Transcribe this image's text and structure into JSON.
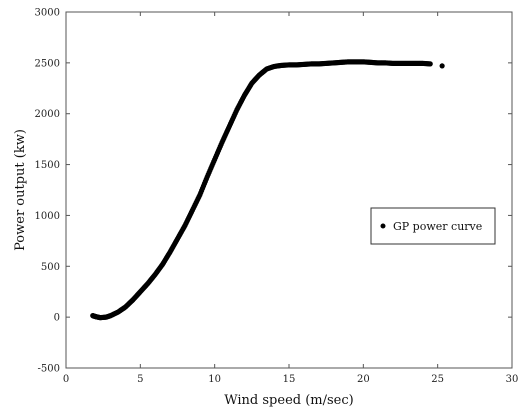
{
  "chart_data": {
    "type": "scatter",
    "xlabel": "Wind speed (m/sec)",
    "ylabel": "Power output (kw)",
    "xlim": [
      0,
      30
    ],
    "ylim": [
      -500,
      3000
    ],
    "xticks": [
      0,
      5,
      10,
      15,
      20,
      25,
      30
    ],
    "yticks": [
      -500,
      0,
      500,
      1000,
      1500,
      2000,
      2500,
      3000
    ],
    "grid": false,
    "legend_position": "right",
    "series": [
      {
        "name": "GP power curve",
        "color": "#000000",
        "x": [
          1.8,
          2.0,
          2.3,
          2.7,
          3.0,
          3.5,
          4.0,
          4.5,
          5.0,
          5.5,
          6.0,
          6.5,
          7.0,
          7.5,
          8.0,
          8.5,
          9.0,
          9.5,
          10.0,
          10.5,
          11.0,
          11.5,
          12.0,
          12.5,
          13.0,
          13.5,
          14.0,
          14.5,
          15.0,
          15.5,
          16.0,
          16.5,
          17.0,
          17.5,
          18.0,
          18.5,
          19.0,
          19.5,
          20.0,
          20.5,
          21.0,
          21.5,
          22.0,
          22.5,
          23.0,
          23.5,
          24.0,
          24.5,
          25.3
        ],
        "y": [
          15,
          5,
          -5,
          0,
          15,
          50,
          100,
          170,
          250,
          330,
          420,
          520,
          640,
          770,
          900,
          1050,
          1200,
          1380,
          1550,
          1720,
          1880,
          2040,
          2180,
          2300,
          2380,
          2440,
          2465,
          2475,
          2480,
          2480,
          2485,
          2490,
          2490,
          2495,
          2500,
          2505,
          2510,
          2510,
          2510,
          2505,
          2500,
          2500,
          2495,
          2495,
          2495,
          2495,
          2495,
          2490,
          2470
        ]
      }
    ]
  }
}
